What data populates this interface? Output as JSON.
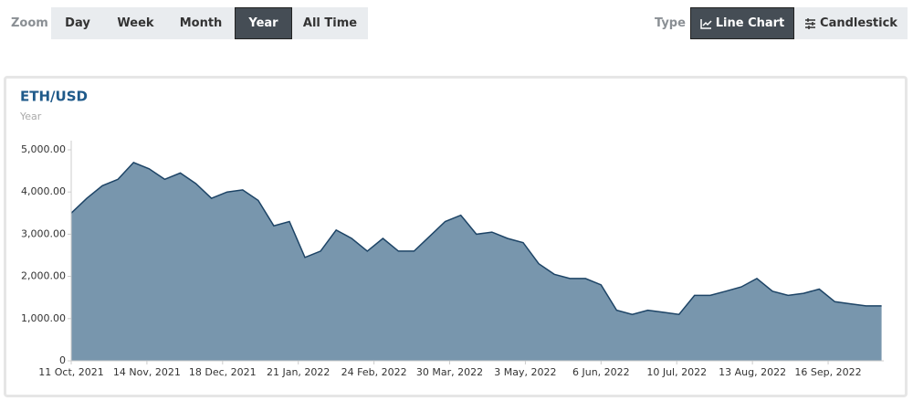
{
  "toolbar": {
    "zoom_label": "Zoom",
    "zoom_options": [
      "Day",
      "Week",
      "Month",
      "Year",
      "All Time"
    ],
    "zoom_selected": 3,
    "type_label": "Type",
    "type_options": [
      "Line Chart",
      "Candlestick"
    ],
    "type_selected": 0
  },
  "chart_data": {
    "type": "area",
    "title": "ETH/USD",
    "subtitle": "Year",
    "x": [
      "2021-10-11",
      "2021-10-18",
      "2021-10-25",
      "2021-11-01",
      "2021-11-08",
      "2021-11-15",
      "2021-11-22",
      "2021-11-29",
      "2021-12-06",
      "2021-12-13",
      "2021-12-20",
      "2021-12-27",
      "2022-01-03",
      "2022-01-10",
      "2022-01-17",
      "2022-01-24",
      "2022-01-31",
      "2022-02-07",
      "2022-02-14",
      "2022-02-21",
      "2022-02-28",
      "2022-03-07",
      "2022-03-14",
      "2022-03-21",
      "2022-03-28",
      "2022-04-04",
      "2022-04-11",
      "2022-04-18",
      "2022-04-25",
      "2022-05-02",
      "2022-05-09",
      "2022-05-16",
      "2022-05-23",
      "2022-05-30",
      "2022-06-06",
      "2022-06-13",
      "2022-06-20",
      "2022-06-27",
      "2022-07-04",
      "2022-07-11",
      "2022-07-18",
      "2022-07-25",
      "2022-08-01",
      "2022-08-08",
      "2022-08-15",
      "2022-08-22",
      "2022-08-29",
      "2022-09-05",
      "2022-09-12",
      "2022-09-19",
      "2022-09-26",
      "2022-10-03",
      "2022-10-10"
    ],
    "values": [
      3500,
      3850,
      4150,
      4300,
      4700,
      4550,
      4300,
      4450,
      4200,
      3850,
      4000,
      4050,
      3800,
      3200,
      3300,
      2450,
      2600,
      3100,
      2900,
      2600,
      2900,
      2600,
      2600,
      2950,
      3300,
      3450,
      3000,
      3050,
      2900,
      2800,
      2300,
      2050,
      1950,
      1950,
      1800,
      1200,
      1100,
      1200,
      1150,
      1100,
      1550,
      1550,
      1650,
      1750,
      1950,
      1650,
      1550,
      1600,
      1700,
      1400,
      1350,
      1300,
      1300
    ],
    "color": "#7896ad",
    "line_color": "#1d4466",
    "xlim": [
      "2021-10-11",
      "2022-10-11"
    ],
    "xticks": [
      {
        "value": "2021-10-11",
        "label": "11 Oct, 2021"
      },
      {
        "value": "2021-11-14",
        "label": "14 Nov, 2021"
      },
      {
        "value": "2021-12-18",
        "label": "18 Dec, 2021"
      },
      {
        "value": "2022-01-21",
        "label": "21 Jan, 2022"
      },
      {
        "value": "2022-02-24",
        "label": "24 Feb, 2022"
      },
      {
        "value": "2022-03-30",
        "label": "30 Mar, 2022"
      },
      {
        "value": "2022-05-03",
        "label": "3 May, 2022"
      },
      {
        "value": "2022-06-06",
        "label": "6 Jun, 2022"
      },
      {
        "value": "2022-07-10",
        "label": "10 Jul, 2022"
      },
      {
        "value": "2022-08-13",
        "label": "13 Aug, 2022"
      },
      {
        "value": "2022-09-16",
        "label": "16 Sep, 2022"
      }
    ],
    "ylim": [
      0,
      5000
    ],
    "yticks": [
      0,
      {
        "value": 1000,
        "label": "1,000.00"
      },
      {
        "value": 2000,
        "label": "2,000.00"
      },
      {
        "value": 3000,
        "label": "3,000.00"
      },
      {
        "value": 4000,
        "label": "4,000.00"
      },
      {
        "value": 5000,
        "label": "5,000.00"
      }
    ],
    "grid": false
  }
}
